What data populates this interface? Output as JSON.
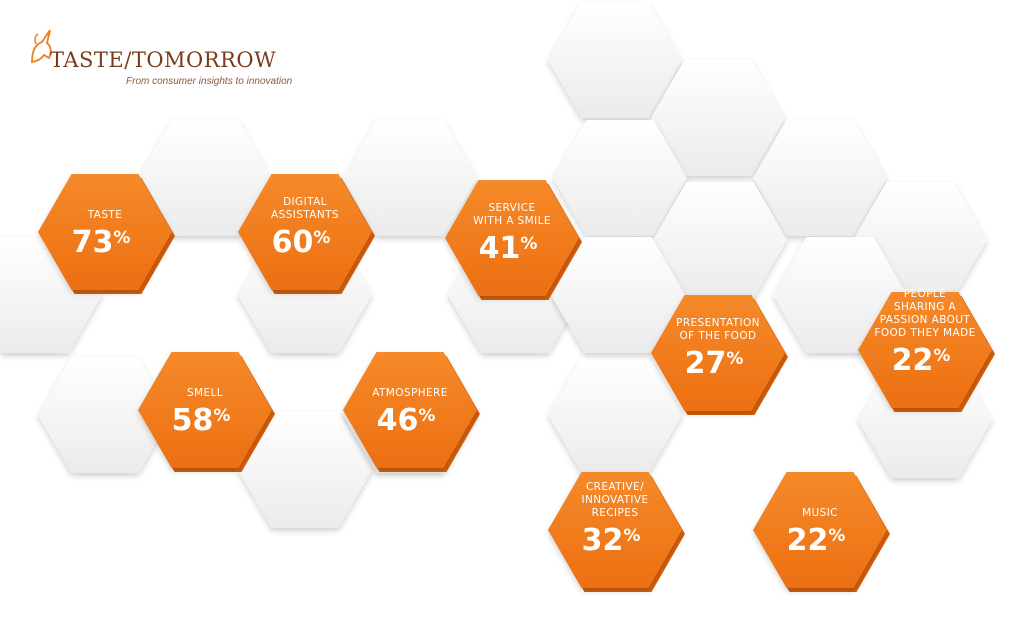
{
  "brand": {
    "name": "TASTE/TOMORROW",
    "tagline": "From consumer insights to innovation"
  },
  "colors": {
    "accent_orange": "#f07d1e",
    "accent_orange_dark": "#d65f0c",
    "hex_light": "#f2f2f2",
    "brand_brown": "#7a3b1c"
  },
  "chart_data": {
    "type": "bar",
    "unit": "%",
    "categories": [
      "TASTE",
      "DIGITAL ASSISTANTS",
      "SERVICE WITH A SMILE",
      "SMELL",
      "ATMOSPHERE",
      "PRESENTATION OF THE FOOD",
      "PEOPLE SHARING A PASSION ABOUT FOOD THEY MADE",
      "CREATIVE/ INNOVATIVE RECIPES",
      "MUSIC"
    ],
    "label_lines": [
      [
        "TASTE"
      ],
      [
        "DIGITAL",
        "ASSISTANTS"
      ],
      [
        "SERVICE",
        "WITH A SMILE"
      ],
      [
        "SMELL"
      ],
      [
        "ATMOSPHERE"
      ],
      [
        "PRESENTATION",
        "OF THE FOOD"
      ],
      [
        "PEOPLE",
        "SHARING A",
        "PASSION ABOUT",
        "FOOD THEY MADE"
      ],
      [
        "CREATIVE/",
        "INNOVATIVE",
        "RECIPES"
      ],
      [
        "MUSIC"
      ]
    ],
    "values": [
      73,
      60,
      41,
      58,
      46,
      27,
      22,
      32,
      22
    ]
  }
}
